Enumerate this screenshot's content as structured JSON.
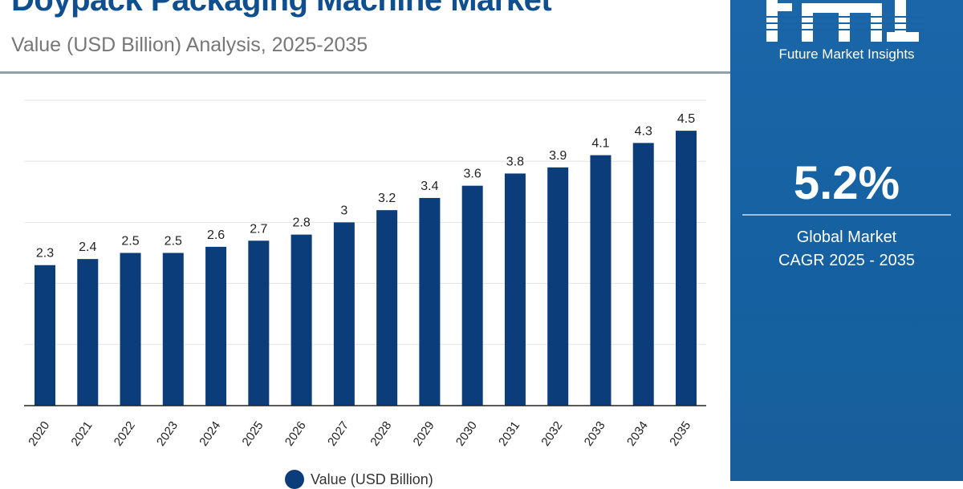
{
  "header": {
    "title": "Doypack Packaging Machine Market",
    "subtitle": "Value (USD Billion) Analysis, 2025-2035"
  },
  "side_panel": {
    "brand_logo_text": "fmi",
    "brand_name": "Future Market Insights",
    "cagr_value": "5.2%",
    "cagr_label_line1": "Global Market",
    "cagr_label_line2": "CAGR 2025 - 2035",
    "background_color": "#1765a6"
  },
  "chart_data": {
    "type": "bar",
    "title": "Doypack Packaging Machine Market",
    "subtitle": "Value (USD Billion) Analysis, 2025-2035",
    "categories": [
      "2020",
      "2021",
      "2022",
      "2023",
      "2024",
      "2025",
      "2026",
      "2027",
      "2028",
      "2029",
      "2030",
      "2031",
      "2032",
      "2033",
      "2034",
      "2035"
    ],
    "series": [
      {
        "name": "Value (USD Billion)",
        "values": [
          2.3,
          2.4,
          2.5,
          2.5,
          2.6,
          2.7,
          2.8,
          3,
          3.2,
          3.4,
          3.6,
          3.8,
          3.9,
          4.1,
          4.3,
          4.5
        ],
        "color": "#0b3d7a"
      }
    ],
    "data_labels": [
      "2.3",
      "2.4",
      "2.5",
      "2.5",
      "2.6",
      "2.7",
      "2.8",
      "3",
      "3.2",
      "3.4",
      "3.6",
      "3.8",
      "3.9",
      "4.1",
      "4.3",
      "4.5"
    ],
    "ylim": [
      0,
      5
    ],
    "grid": true,
    "y_tick_labels_shown": false,
    "legend": "bottom-center"
  }
}
